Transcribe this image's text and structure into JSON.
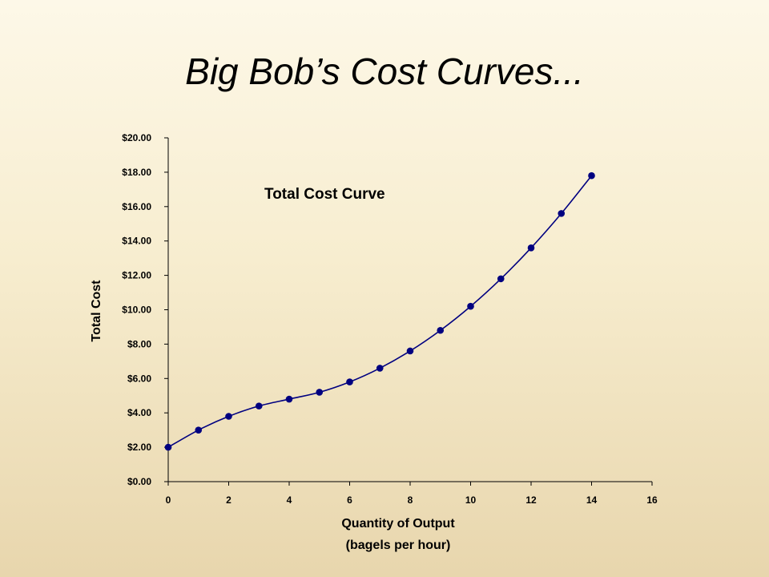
{
  "slide": {
    "title": "Big Bob’s Cost Curves..."
  },
  "chart_data": {
    "type": "line",
    "title": "",
    "xlabel_line1": "Quantity of Output",
    "xlabel_line2": "(bagels per hour)",
    "ylabel": "Total Cost",
    "annotation": "Total Cost Curve",
    "xlim": [
      0,
      16
    ],
    "ylim": [
      0,
      20
    ],
    "x_ticks": [
      0,
      2,
      4,
      6,
      8,
      10,
      12,
      14,
      16
    ],
    "y_ticks": [
      0,
      2,
      4,
      6,
      8,
      10,
      12,
      14,
      16,
      18,
      20
    ],
    "y_tick_labels": [
      "$0.00",
      "$2.00",
      "$4.00",
      "$6.00",
      "$8.00",
      "$10.00",
      "$12.00",
      "$14.00",
      "$16.00",
      "$18.00",
      "$20.00"
    ],
    "grid": false,
    "series_color": "#000080",
    "series": [
      {
        "x": [
          0,
          1,
          2,
          3,
          4,
          5,
          6,
          7,
          8,
          9,
          10,
          11,
          12,
          13,
          14
        ],
        "values": [
          2.0,
          3.0,
          3.8,
          4.4,
          4.8,
          5.2,
          5.8,
          6.6,
          7.6,
          8.8,
          10.2,
          11.8,
          13.6,
          15.6,
          17.8
        ]
      }
    ]
  }
}
